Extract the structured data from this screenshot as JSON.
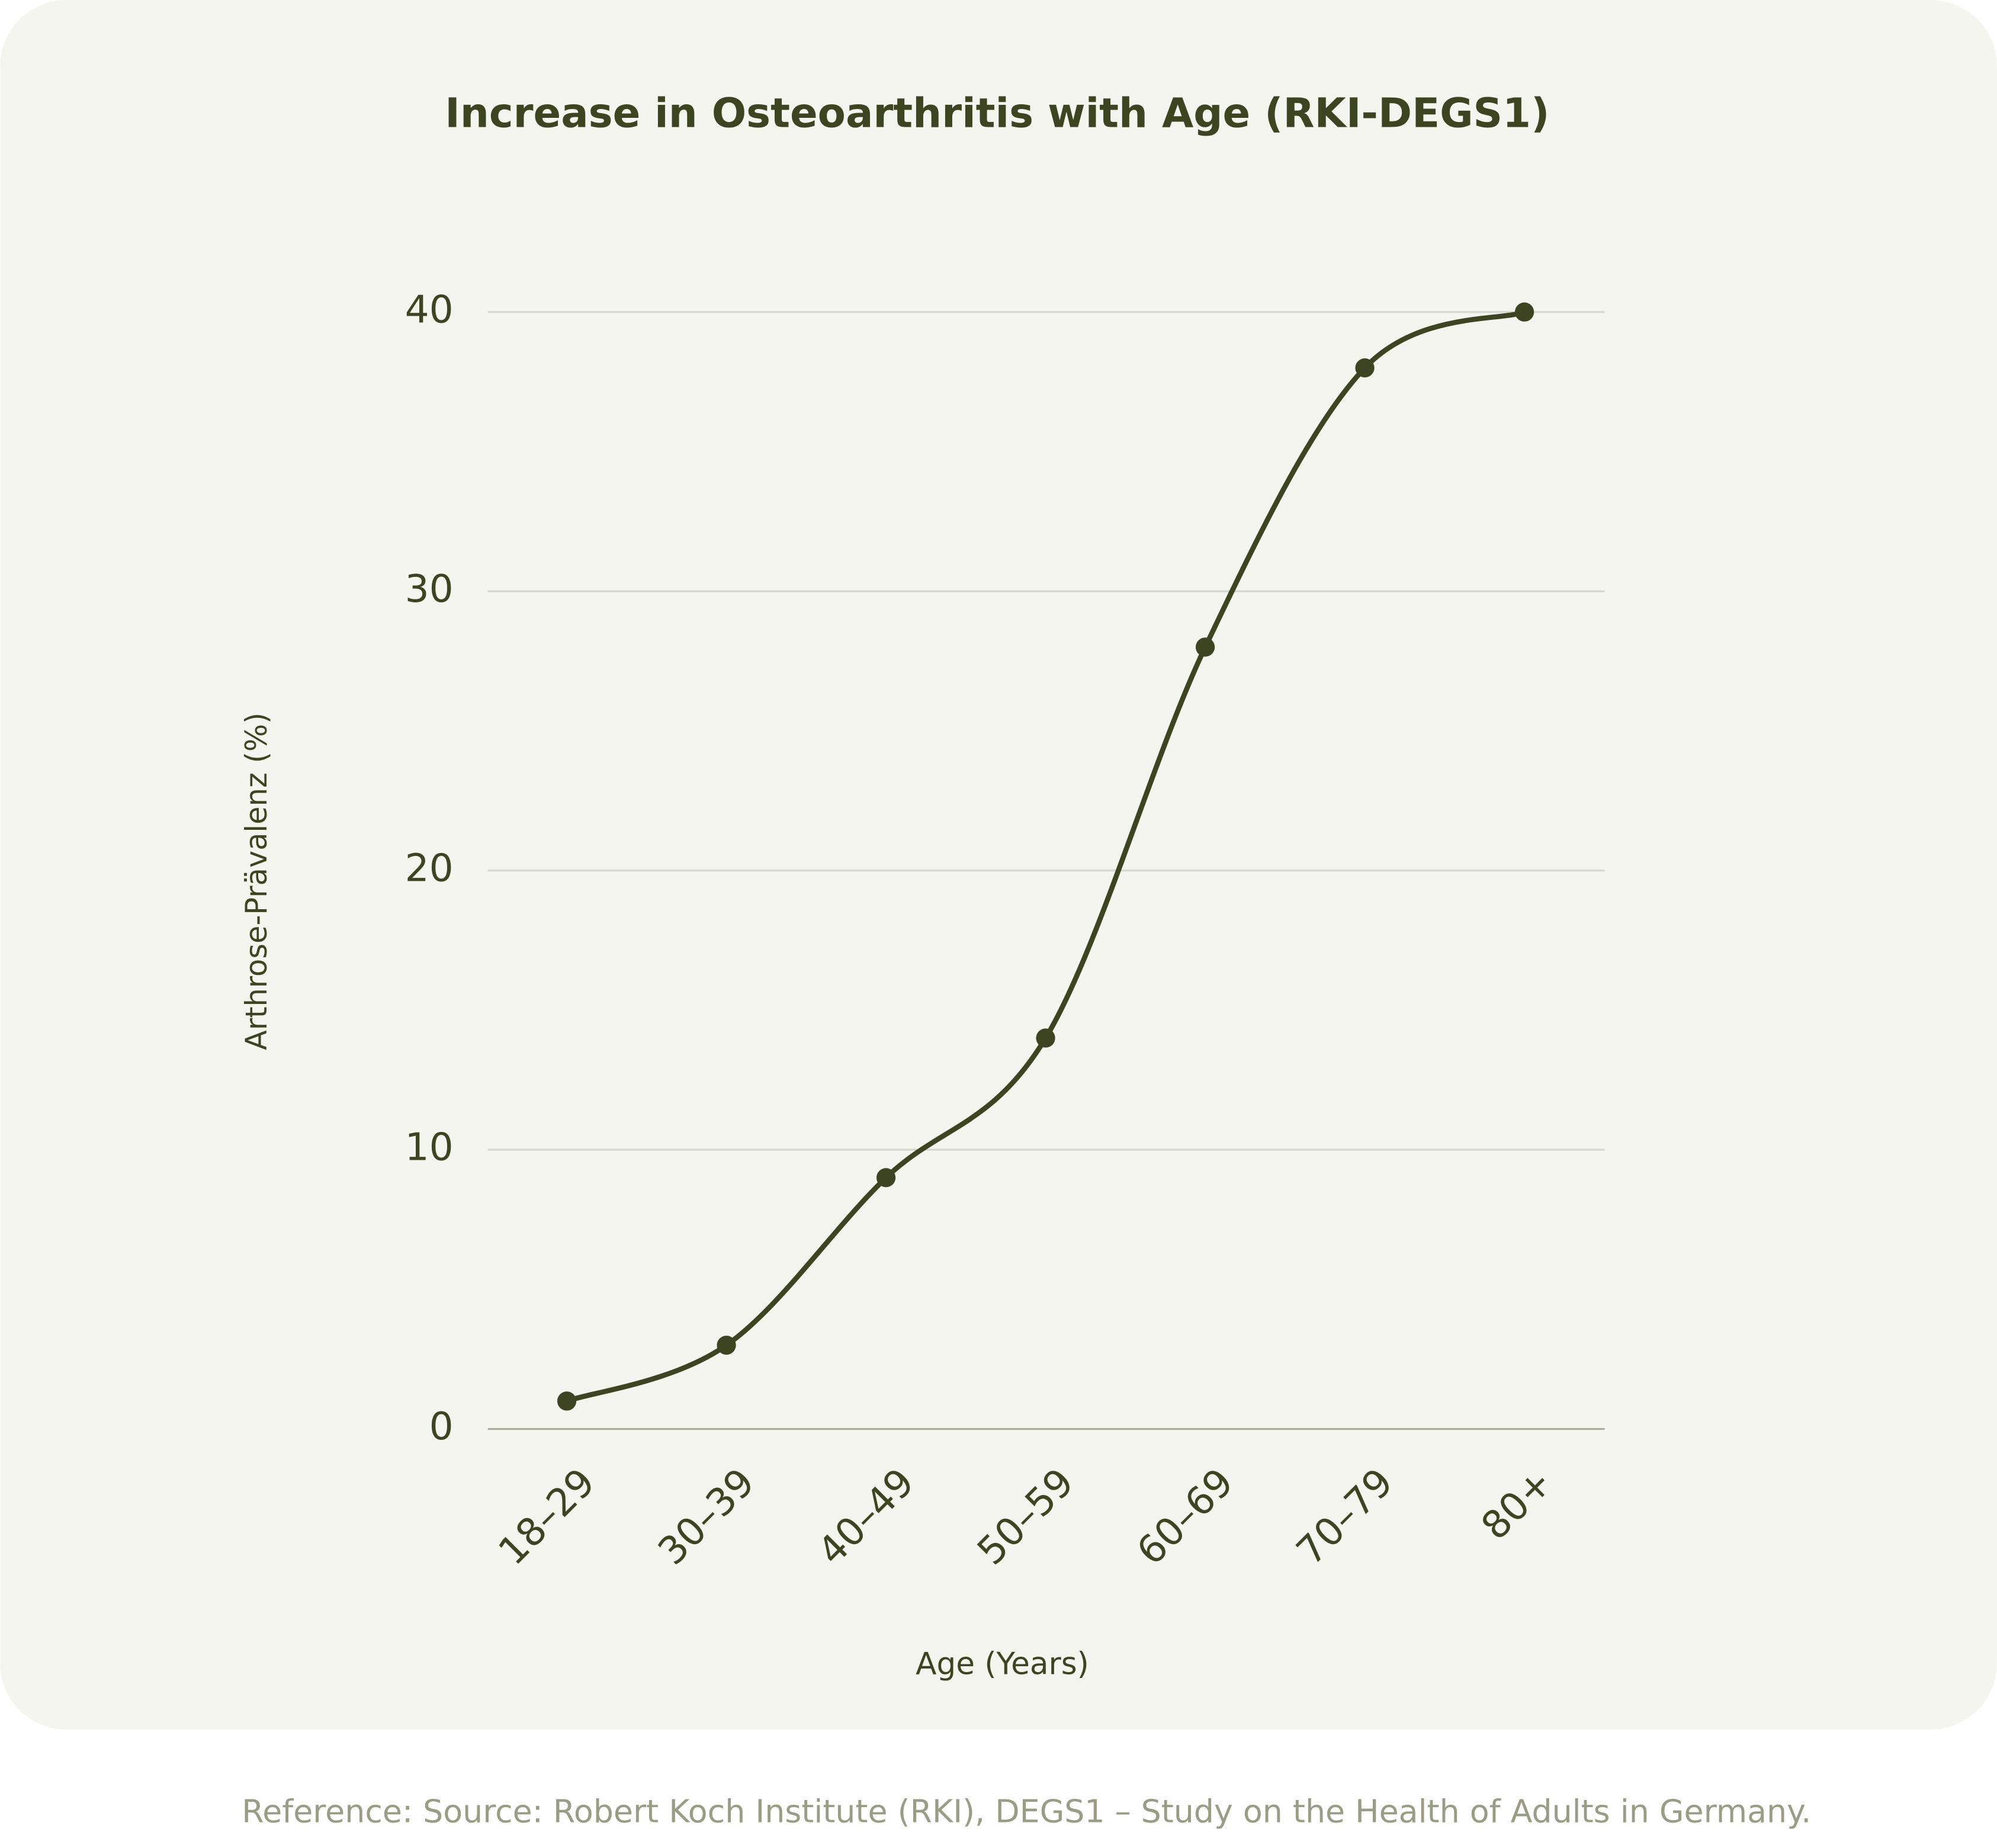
{
  "chart_data": {
    "type": "line",
    "title": "Increase in Osteoarthritis with Age (RKI-DEGS1)",
    "x_label": "Age (Years)",
    "y_label": "Arthrose-Prävalenz (%)",
    "categories": [
      "18–29",
      "30–39",
      "40–49",
      "50–59",
      "60–69",
      "70–79",
      "80+"
    ],
    "values": [
      1,
      3,
      9,
      14,
      28,
      38,
      40
    ],
    "color": "#3d4422",
    "ylim": [
      0,
      40
    ],
    "yticks": [
      0,
      10,
      20,
      30,
      40
    ],
    "grid": true,
    "footnote": "Reference: Source: Robert Koch Institute (RKI), DEGS1 – Study on the Health of Adults in Germany."
  }
}
